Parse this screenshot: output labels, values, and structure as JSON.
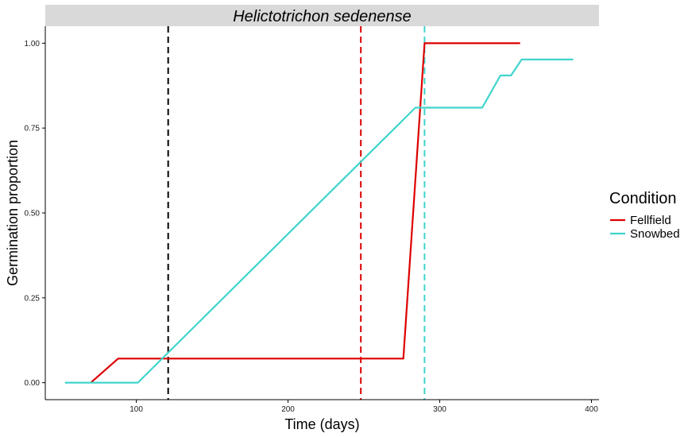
{
  "chart_data": {
    "type": "line",
    "facet_title": "Helictotrichon sedenense",
    "xlabel": "Time (days)",
    "ylabel": "Germination proportion",
    "xlim": [
      40,
      405
    ],
    "ylim": [
      -0.05,
      1.05
    ],
    "x_ticks": [
      100,
      200,
      300,
      400
    ],
    "y_ticks": [
      0.0,
      0.25,
      0.5,
      0.75,
      1.0
    ],
    "y_tick_labels": [
      "0.00",
      "0.25",
      "0.50",
      "0.75",
      "1.00"
    ],
    "grid": false,
    "legend": {
      "title": "Condition",
      "position": "right"
    },
    "series": [
      {
        "name": "Fellfield",
        "color": "#dd0000",
        "x": [
          70,
          88,
          276,
          290,
          353
        ],
        "y": [
          0.0,
          0.071,
          0.071,
          1.0,
          1.0
        ]
      },
      {
        "name": "Snowbed",
        "color": "#40d4cc",
        "x": [
          53,
          101,
          284,
          328,
          340,
          347,
          354,
          388
        ],
        "y": [
          0.0,
          0.0,
          0.81,
          0.81,
          0.905,
          0.905,
          0.952,
          0.952
        ]
      }
    ],
    "vlines": [
      {
        "x": 121,
        "color": "#000000",
        "style": "dashed"
      },
      {
        "x": 248,
        "color": "#dd0000",
        "style": "dashed"
      },
      {
        "x": 290,
        "color": "#40d4cc",
        "style": "dashed"
      }
    ]
  }
}
